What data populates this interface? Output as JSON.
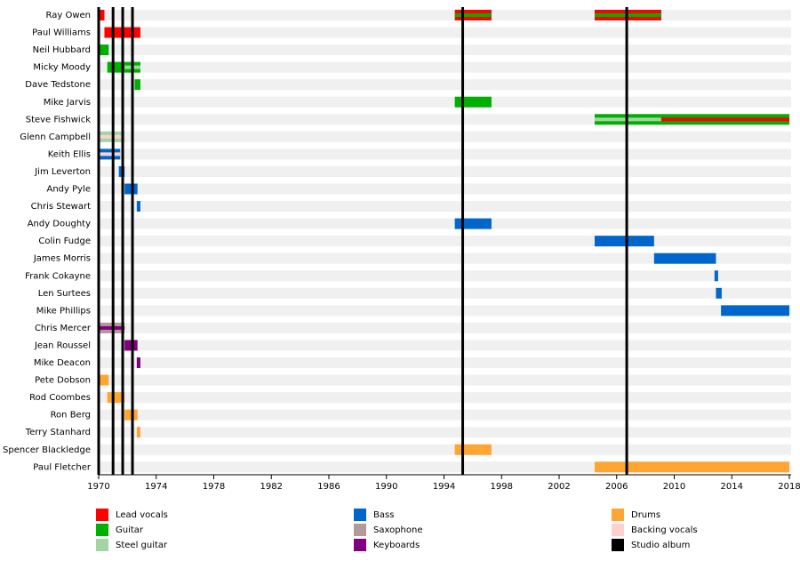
{
  "chart_data": {
    "type": "timeline",
    "xlim": [
      1970,
      2018
    ],
    "xticks": [
      1970,
      1974,
      1978,
      1982,
      1986,
      1990,
      1994,
      1998,
      2002,
      2006,
      2010,
      2014,
      2018
    ],
    "roles": [
      {
        "name": "Lead vocals",
        "color": "#ff0000"
      },
      {
        "name": "Guitar",
        "color": "#00b000"
      },
      {
        "name": "Steel guitar",
        "color": "#a3d4a3"
      },
      {
        "name": "Bass",
        "color": "#0066cc"
      },
      {
        "name": "Saxophone",
        "color": "#b39a9a"
      },
      {
        "name": "Keyboards",
        "color": "#800080"
      },
      {
        "name": "Drums",
        "color": "#ffa533"
      },
      {
        "name": "Backing vocals",
        "color": "#ffd0d0"
      }
    ],
    "album_label": "Studio album",
    "album_color": "#000000",
    "albums": [
      1970,
      1971,
      1971.67,
      1972.35,
      1995.3,
      2006.7
    ],
    "members": [
      {
        "name": "Ray Owen",
        "periods": [
          {
            "role": 0,
            "start": 1970,
            "end": 1970.4
          },
          {
            "role": 0,
            "secondary": 1,
            "start": 1994.75,
            "end": 1997.3
          },
          {
            "role": 0,
            "secondary": 1,
            "start": 2004.47,
            "end": 2009.1
          }
        ]
      },
      {
        "name": "Paul Williams",
        "periods": [
          {
            "role": 0,
            "start": 1970.4,
            "end": 1972.9
          }
        ]
      },
      {
        "name": "Neil Hubbard",
        "periods": [
          {
            "role": 1,
            "start": 1970,
            "end": 1970.7
          }
        ]
      },
      {
        "name": "Micky Moody",
        "periods": [
          {
            "role": 1,
            "start": 1970.6,
            "end": 1971.8
          },
          {
            "role": 1,
            "secondary": 2,
            "start": 1971.8,
            "end": 1972.9
          }
        ]
      },
      {
        "name": "Dave Tedstone",
        "periods": [
          {
            "role": 1,
            "start": 1972.5,
            "end": 1972.9
          }
        ]
      },
      {
        "name": "Mike Jarvis",
        "periods": [
          {
            "role": 1,
            "start": 1994.75,
            "end": 1997.3
          }
        ]
      },
      {
        "name": "Steve Fishwick",
        "periods": [
          {
            "role": 1,
            "secondary": 2,
            "start": 2004.47,
            "end": 2009.1
          },
          {
            "role": 1,
            "secondary": 0,
            "start": 2009.1,
            "end": 2018
          }
        ]
      },
      {
        "name": "Glenn Campbell",
        "periods": [
          {
            "role": 2,
            "secondary": 7,
            "start": 1970,
            "end": 1971.8
          }
        ]
      },
      {
        "name": "Keith Ellis",
        "periods": [
          {
            "role": 3,
            "secondary": 7,
            "start": 1970,
            "end": 1971.5
          }
        ]
      },
      {
        "name": "Jim Leverton",
        "periods": [
          {
            "role": 3,
            "start": 1971.4,
            "end": 1971.8
          }
        ]
      },
      {
        "name": "Andy Pyle",
        "periods": [
          {
            "role": 3,
            "start": 1971.8,
            "end": 1972.7
          }
        ]
      },
      {
        "name": "Chris Stewart",
        "periods": [
          {
            "role": 3,
            "start": 1972.65,
            "end": 1972.9
          }
        ]
      },
      {
        "name": "Andy Doughty",
        "periods": [
          {
            "role": 3,
            "start": 1994.75,
            "end": 1997.3
          }
        ]
      },
      {
        "name": "Colin Fudge",
        "periods": [
          {
            "role": 3,
            "start": 2004.47,
            "end": 2008.6
          }
        ]
      },
      {
        "name": "James Morris",
        "periods": [
          {
            "role": 3,
            "start": 2008.6,
            "end": 2012.9
          }
        ]
      },
      {
        "name": "Frank Cokayne",
        "periods": [
          {
            "role": 3,
            "start": 2012.8,
            "end": 2013.05
          }
        ]
      },
      {
        "name": "Len Surtees",
        "periods": [
          {
            "role": 3,
            "start": 2012.9,
            "end": 2013.3
          }
        ]
      },
      {
        "name": "Mike Phillips",
        "periods": [
          {
            "role": 3,
            "start": 2013.25,
            "end": 2018
          }
        ]
      },
      {
        "name": "Chris Mercer",
        "periods": [
          {
            "role": 4,
            "secondary": 5,
            "start": 1970,
            "end": 1971.8
          }
        ]
      },
      {
        "name": "Jean Roussel",
        "periods": [
          {
            "role": 5,
            "start": 1971.8,
            "end": 1972.7
          }
        ]
      },
      {
        "name": "Mike Deacon",
        "periods": [
          {
            "role": 5,
            "start": 1972.65,
            "end": 1972.9
          }
        ]
      },
      {
        "name": "Pete Dobson",
        "periods": [
          {
            "role": 6,
            "start": 1970,
            "end": 1970.7
          }
        ]
      },
      {
        "name": "Rod Coombes",
        "periods": [
          {
            "role": 6,
            "start": 1970.6,
            "end": 1971.8
          }
        ]
      },
      {
        "name": "Ron Berg",
        "periods": [
          {
            "role": 6,
            "start": 1971.8,
            "end": 1972.7
          }
        ]
      },
      {
        "name": "Terry Stanhard",
        "periods": [
          {
            "role": 6,
            "start": 1972.65,
            "end": 1972.9
          }
        ]
      },
      {
        "name": "Spencer Blackledge",
        "periods": [
          {
            "role": 6,
            "start": 1994.75,
            "end": 1997.3
          }
        ]
      },
      {
        "name": "Paul Fletcher",
        "periods": [
          {
            "role": 6,
            "start": 2004.47,
            "end": 2018
          }
        ]
      }
    ]
  }
}
